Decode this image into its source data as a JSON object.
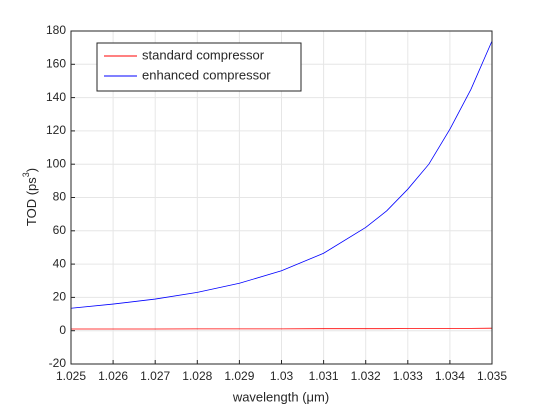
{
  "chart_data": {
    "type": "line",
    "xlabel": "wavelength (μm)",
    "ylabel_parts": [
      "TOD (ps",
      "3",
      ")"
    ],
    "x": [
      1.025,
      1.026,
      1.027,
      1.028,
      1.029,
      1.03,
      1.031,
      1.032,
      1.0325,
      1.033,
      1.0335,
      1.034,
      1.0345,
      1.035
    ],
    "series": [
      {
        "name": "standard compressor",
        "color": "#ff0000",
        "values": [
          1,
          1,
          1,
          1.1,
          1.1,
          1.1,
          1.2,
          1.2,
          1.2,
          1.3,
          1.3,
          1.4,
          1.4,
          1.5
        ]
      },
      {
        "name": "enhanced compressor",
        "color": "#0000ff",
        "values": [
          13.5,
          16,
          19,
          23,
          28.5,
          36,
          46.5,
          62,
          72,
          85,
          100,
          121,
          145,
          174
        ]
      }
    ],
    "xlim": [
      1.025,
      1.035
    ],
    "xticks": [
      1.025,
      1.026,
      1.027,
      1.028,
      1.029,
      1.03,
      1.031,
      1.032,
      1.033,
      1.034,
      1.035
    ],
    "ylim": [
      -20,
      180
    ],
    "yticks": [
      -20,
      0,
      20,
      40,
      60,
      80,
      100,
      120,
      140,
      160,
      180
    ],
    "grid": true,
    "legend": "upper-left"
  }
}
